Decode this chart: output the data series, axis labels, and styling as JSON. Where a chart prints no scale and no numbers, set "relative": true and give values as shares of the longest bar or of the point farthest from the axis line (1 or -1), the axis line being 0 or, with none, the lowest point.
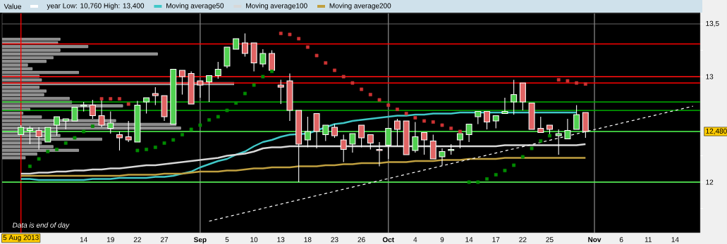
{
  "chart_data": [
    {
      "type": "candlestick",
      "legend_title": "Value",
      "legend": "top",
      "color": "#ffffff",
      "annotations": [
        "year Low: 10,760 High: 13,400",
        "Data is end of day"
      ],
      "categories": [
        "5 Aug 2013",
        null,
        null,
        null,
        null,
        null,
        null,
        "14",
        null,
        null,
        "19",
        null,
        null,
        "22",
        null,
        null,
        "27",
        null,
        null,
        null,
        "Sep",
        null,
        null,
        "5",
        null,
        null,
        "10",
        null,
        null,
        "13",
        null,
        null,
        "18",
        null,
        null,
        "23",
        null,
        null,
        "26",
        null,
        null,
        "Oct",
        null,
        null,
        "4",
        null,
        null,
        "9",
        null,
        null,
        "14",
        null,
        null,
        "17",
        null,
        null,
        "22",
        null,
        null,
        "25",
        null,
        null,
        null,
        null,
        "Nov",
        null,
        null,
        "6",
        null,
        null,
        "11",
        null,
        null,
        "14",
        null,
        null
      ],
      "ohlc": [
        [
          12.45,
          12.54,
          12.45,
          12.52
        ],
        [
          12.49,
          12.53,
          12.36,
          12.51
        ],
        [
          12.49,
          12.52,
          12.31,
          12.43
        ],
        [
          12.38,
          12.52,
          12.38,
          12.52
        ],
        [
          12.54,
          12.62,
          12.44,
          12.62
        ],
        [
          12.58,
          12.6,
          12.5,
          12.6
        ],
        [
          12.58,
          12.71,
          12.58,
          12.71
        ],
        [
          12.72,
          12.76,
          12.67,
          12.73
        ],
        [
          12.73,
          12.78,
          12.6,
          12.63
        ],
        [
          12.63,
          12.78,
          12.52,
          12.54
        ],
        [
          12.51,
          12.67,
          12.46,
          12.56
        ],
        [
          12.45,
          12.48,
          12.3,
          12.42
        ],
        [
          12.43,
          12.58,
          12.38,
          12.4
        ],
        [
          12.38,
          12.77,
          12.38,
          12.73
        ],
        [
          12.76,
          12.8,
          12.65,
          12.8
        ],
        [
          12.84,
          12.9,
          12.73,
          12.82
        ],
        [
          12.82,
          12.82,
          12.58,
          12.62
        ],
        [
          12.55,
          13.07,
          12.55,
          13.07
        ],
        [
          13.06,
          13.06,
          12.83,
          13.0
        ],
        [
          13.03,
          13.05,
          12.74,
          12.74
        ],
        [
          12.96,
          12.96,
          12.8,
          12.92
        ],
        [
          12.95,
          13.01,
          12.76,
          13.01
        ],
        [
          13.01,
          13.14,
          12.98,
          13.07
        ],
        [
          13.1,
          13.28,
          13.08,
          13.28
        ],
        [
          13.26,
          13.36,
          13.26,
          13.36
        ],
        [
          13.32,
          13.41,
          13.19,
          13.22
        ],
        [
          13.32,
          13.32,
          13.05,
          13.13
        ],
        [
          13.12,
          13.26,
          13.09,
          13.22
        ],
        [
          13.22,
          13.25,
          13.06,
          13.06
        ],
        [
          12.92,
          12.97,
          12.74,
          12.9
        ],
        [
          12.96,
          13.03,
          12.58,
          12.68
        ],
        [
          12.68,
          12.68,
          12.0,
          12.36
        ],
        [
          12.4,
          12.62,
          12.33,
          12.48
        ],
        [
          12.65,
          12.65,
          12.32,
          12.48
        ],
        [
          12.45,
          12.54,
          12.39,
          12.54
        ],
        [
          12.52,
          12.55,
          12.42,
          12.44
        ],
        [
          12.4,
          12.45,
          12.19,
          12.31
        ],
        [
          12.36,
          12.46,
          12.28,
          12.46
        ],
        [
          12.54,
          12.54,
          12.33,
          12.42
        ],
        [
          12.45,
          12.45,
          12.31,
          12.37
        ],
        [
          12.31,
          12.38,
          12.15,
          12.3
        ],
        [
          12.35,
          12.51,
          12.22,
          12.51
        ],
        [
          12.58,
          12.6,
          12.34,
          12.5
        ],
        [
          12.58,
          12.58,
          12.26,
          12.26
        ],
        [
          12.3,
          12.57,
          12.28,
          12.43
        ],
        [
          12.47,
          12.47,
          12.26,
          12.4
        ],
        [
          12.39,
          12.45,
          12.22,
          12.22
        ],
        [
          12.24,
          12.32,
          12.16,
          12.29
        ],
        [
          12.3,
          12.36,
          12.26,
          12.31
        ],
        [
          12.4,
          12.46,
          12.32,
          12.46
        ],
        [
          12.45,
          12.55,
          12.38,
          12.55
        ],
        [
          12.62,
          12.67,
          12.55,
          12.67
        ],
        [
          12.67,
          12.67,
          12.5,
          12.57
        ],
        [
          12.58,
          12.63,
          12.51,
          12.63
        ],
        [
          12.65,
          12.8,
          12.65,
          12.67
        ],
        [
          12.76,
          12.97,
          12.64,
          12.83
        ],
        [
          12.94,
          12.94,
          12.68,
          12.76
        ],
        [
          12.75,
          12.75,
          12.5,
          12.5
        ],
        [
          12.51,
          12.62,
          12.47,
          12.47
        ],
        [
          12.54,
          12.54,
          12.45,
          12.5
        ],
        [
          12.44,
          12.5,
          12.26,
          12.46
        ],
        [
          12.41,
          12.6,
          12.41,
          12.49
        ],
        [
          12.5,
          12.73,
          12.5,
          12.64
        ],
        [
          12.66,
          12.66,
          12.42,
          12.48
        ],
        null,
        null,
        null,
        null,
        null,
        null,
        null,
        null,
        null,
        null,
        null,
        null
      ],
      "colors": [
        "#50d050",
        "#50d050",
        "#e06464",
        "#50d050",
        "#50d050",
        "#50d050",
        "#50d050",
        "#50d050",
        "#e06464",
        "#e06464",
        "#50d050",
        "#e06464",
        "#e06464",
        "#50d050",
        "#50d050",
        "#e06464",
        "#e06464",
        "#50d050",
        "#e06464",
        "#e06464",
        "#e06464",
        "#50d050",
        "#50d050",
        "#50d050",
        "#50d050",
        "#e06464",
        "#e06464",
        "#50d050",
        "#e06464",
        "#e06464",
        "#e06464",
        "#e06464",
        "#50d050",
        "#e06464",
        "#50d050",
        "#e06464",
        "#e06464",
        "#50d050",
        "#e06464",
        "#e06464",
        "#e06464",
        "#50d050",
        "#e06464",
        "#e06464",
        "#50d050",
        "#e06464",
        "#e06464",
        "#50d050",
        "#50d050",
        "#50d050",
        "#50d050",
        "#50d050",
        "#e06464",
        "#50d050",
        "#50d050",
        "#50d050",
        "#e06464",
        "#e06464",
        "#e06464",
        "#e06464",
        "#50d050",
        "#50d050",
        "#50d050",
        "#e06464",
        null,
        null,
        null,
        null,
        null,
        null,
        null,
        null,
        null,
        null,
        null,
        null
      ],
      "series": [
        {
          "type": "line",
          "name": "Moving average50",
          "color": "#40c8c8",
          "values": [
            12.03,
            12.03,
            12.02,
            12.02,
            12.02,
            12.02,
            12.02,
            12.02,
            12.03,
            12.03,
            12.03,
            12.04,
            12.04,
            12.04,
            12.04,
            12.05,
            12.05,
            12.06,
            12.08,
            12.1,
            12.14,
            12.17,
            12.2,
            12.22,
            12.26,
            12.29,
            12.34,
            12.38,
            12.4,
            12.43,
            12.45,
            null,
            12.46,
            null,
            12.52,
            12.55,
            12.56,
            12.58,
            12.59,
            12.6,
            12.61,
            12.62,
            12.63,
            12.63,
            12.64,
            12.64,
            12.65,
            12.65,
            12.65,
            12.66,
            12.66,
            12.66,
            null,
            12.66,
            12.66,
            12.66,
            12.66,
            null,
            12.66,
            12.66,
            12.66,
            12.66,
            12.66,
            null,
            null,
            null,
            null,
            null,
            null,
            null,
            null,
            null,
            null,
            null,
            null,
            null
          ]
        },
        {
          "type": "line",
          "name": "Moving average100",
          "color": "#d8d8d8",
          "values": [
            12.08,
            12.08,
            12.09,
            12.09,
            12.1,
            12.1,
            12.11,
            12.11,
            12.12,
            12.12,
            12.13,
            12.13,
            12.14,
            12.15,
            12.16,
            12.16,
            12.17,
            12.18,
            12.19,
            12.2,
            12.21,
            12.22,
            12.23,
            12.25,
            12.26,
            12.27,
            12.29,
            12.32,
            12.33,
            12.33,
            12.34,
            12.34,
            12.34,
            12.34,
            12.34,
            12.34,
            12.34,
            12.34,
            12.34,
            12.34,
            12.34,
            12.34,
            12.34,
            12.34,
            12.34,
            12.34,
            12.34,
            12.34,
            12.34,
            12.34,
            12.34,
            12.34,
            12.34,
            12.34,
            12.35,
            12.35,
            12.35,
            12.35,
            12.35,
            12.35,
            12.35,
            12.35,
            12.35,
            12.36,
            null,
            null,
            null,
            null,
            null,
            null,
            null,
            null,
            null,
            null,
            null,
            null
          ]
        },
        {
          "type": "line",
          "name": "Moving average200",
          "color": "#c0a040",
          "values": [
            12.06,
            12.06,
            12.06,
            12.06,
            12.06,
            12.06,
            12.06,
            12.06,
            12.06,
            12.06,
            12.06,
            12.06,
            12.07,
            12.07,
            12.07,
            12.07,
            12.08,
            12.08,
            12.08,
            12.09,
            12.1,
            12.1,
            12.1,
            12.11,
            12.11,
            12.12,
            12.13,
            12.13,
            12.14,
            12.14,
            12.14,
            12.15,
            12.15,
            12.15,
            12.16,
            12.16,
            12.17,
            12.17,
            12.18,
            12.18,
            12.18,
            12.19,
            12.19,
            12.19,
            12.2,
            12.2,
            12.2,
            12.21,
            12.21,
            12.21,
            12.22,
            12.22,
            12.22,
            12.22,
            12.23,
            12.23,
            12.23,
            12.23,
            12.23,
            12.23,
            12.23,
            12.23,
            12.23,
            12.23,
            null,
            null,
            null,
            null,
            null,
            null,
            null,
            null,
            null,
            null,
            null,
            null
          ]
        },
        {
          "type": "line",
          "color": "#ffffff",
          "line_style": "dashed",
          "values": [
            null,
            null,
            null,
            null,
            null,
            null,
            null,
            null,
            null,
            null,
            null,
            null,
            null,
            null,
            null,
            null,
            null,
            null,
            null,
            null,
            null,
            11.63,
            null,
            null,
            null,
            null,
            null,
            null,
            null,
            null,
            null,
            null,
            null,
            null,
            null,
            null,
            null,
            null,
            null,
            null,
            null,
            null,
            null,
            null,
            null,
            null,
            null,
            null,
            null,
            null,
            null,
            null,
            null,
            null,
            null,
            null,
            null,
            null,
            null,
            null,
            null,
            null,
            null,
            null,
            null,
            null,
            null,
            null,
            null,
            null,
            null,
            null,
            null,
            null,
            null,
            12.72
          ]
        },
        {
          "type": "scatter",
          "marker": "square",
          "values": [
            null,
            12.15,
            12.22,
            12.29,
            12.31,
            12.37,
            12.42,
            12.48,
            12.53,
            12.79,
            12.79,
            12.79,
            12.74,
            12.3,
            12.31,
            12.33,
            12.37,
            12.4,
            12.45,
            12.5,
            12.54,
            12.59,
            12.62,
            12.68,
            12.75,
            12.84,
            12.92,
            13.0,
            13.05,
            13.41,
            13.4,
            13.36,
            13.28,
            13.2,
            13.13,
            13.06,
            13.0,
            12.94,
            12.88,
            12.83,
            12.78,
            12.73,
            12.69,
            12.65,
            12.61,
            12.58,
            12.57,
            12.54,
            12.51,
            12.48,
            12.0,
            12.0,
            12.03,
            12.07,
            12.11,
            12.16,
            12.24,
            12.32,
            12.39,
            12.44,
            12.97,
            12.96,
            12.94,
            12.93,
            null,
            null,
            null,
            null,
            null,
            null,
            null,
            null,
            null,
            null,
            null,
            null
          ],
          "colors": [
            null,
            "#008c00",
            "#008c00",
            "#008c00",
            "#008c00",
            "#008c00",
            "#008c00",
            "#008c00",
            "#008c00",
            "#cc3333",
            "#cc3333",
            "#cc3333",
            "#cc3333",
            "#008c00",
            "#008c00",
            "#008c00",
            "#008c00",
            "#008c00",
            "#008c00",
            "#008c00",
            "#008c00",
            "#008c00",
            "#008c00",
            "#008c00",
            "#008c00",
            "#008c00",
            "#008c00",
            "#008c00",
            "#008c00",
            "#cc3333",
            "#cc3333",
            "#cc3333",
            "#cc3333",
            "#cc3333",
            "#cc3333",
            "#cc3333",
            "#cc3333",
            "#cc3333",
            "#cc3333",
            "#cc3333",
            "#cc3333",
            "#cc3333",
            "#cc3333",
            "#cc3333",
            "#cc3333",
            "#cc3333",
            "#cc3333",
            "#cc3333",
            "#cc3333",
            "#cc3333",
            "#008c00",
            "#008c00",
            "#008c00",
            "#008c00",
            "#008c00",
            "#008c00",
            "#008c00",
            "#008c00",
            "#008c00",
            "#008c00",
            "#cc3333",
            "#cc3333",
            "#cc3333",
            "#cc3333",
            null,
            null,
            null,
            null,
            null,
            null,
            null,
            null,
            null,
            null,
            null,
            null
          ]
        }
      ],
      "ylim": [
        11.52,
        13.6
      ],
      "yticks": [
        {
          "value": 11.75,
          "label": null
        },
        12,
        {
          "value": 12.25,
          "label": null
        },
        13,
        {
          "value": 13.25,
          "label": null
        },
        {
          "value": 13.5,
          "label": "13,5"
        }
      ],
      "grid": "y",
      "ref_lines": [
        {
          "axis": "x",
          "value": "Sep",
          "color": "#808080"
        },
        {
          "axis": "x",
          "value": "Oct",
          "color": "#808080"
        },
        {
          "axis": "x",
          "value": "Nov",
          "color": "#808080"
        },
        {
          "axis": "x",
          "value": "5 Aug 2013",
          "color": "#ff0000"
        },
        {
          "axis": "y",
          "value": 13.31,
          "color": "#ff0000"
        },
        {
          "axis": "y",
          "value": 13.0,
          "color": "#ff0000"
        },
        {
          "axis": "y",
          "value": 12.94,
          "color": "#ff0000"
        },
        {
          "axis": "y",
          "value": 12.76,
          "color": "#00b000"
        },
        {
          "axis": "y",
          "value": 12.68,
          "color": "#00b000"
        },
        {
          "axis": "y",
          "value": 12.48,
          "color": "#50ff50",
          "label": "12,480"
        },
        {
          "axis": "y",
          "value": 12.0,
          "color": "#50ff50"
        }
      ]
    },
    {
      "type": "bar",
      "orientation": "horizontal",
      "relative": true,
      "color": "#8c8c8c",
      "categories": [
        null,
        null,
        null,
        null,
        null,
        null,
        null,
        null,
        null,
        null,
        null,
        null,
        null,
        null,
        null,
        null,
        null,
        null,
        null,
        null,
        null,
        null,
        null,
        null,
        null,
        null,
        null,
        null,
        null,
        null,
        null,
        null,
        null
      ],
      "values": [
        0.25,
        0.24,
        0.37,
        0.25,
        0.67,
        0.22,
        0.19,
        0.11,
        0.13,
        0.33,
        0.16,
        0.17,
        1,
        0.16,
        0.19,
        0.18,
        0.29,
        0.3,
        0.52,
        0.12,
        0.09,
        0.17,
        0.49,
        0.75,
        0.77,
        0.24,
        0.25,
        0.43,
        0.17,
        0.22,
        0.33,
        0.15,
        0.1
      ]
    }
  ]
}
